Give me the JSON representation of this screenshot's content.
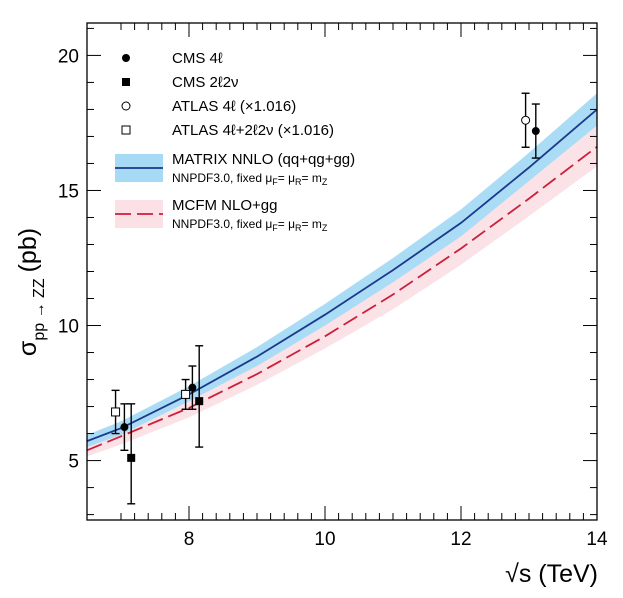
{
  "chart_data": {
    "type": "line",
    "xlabel": "√s (TeV)",
    "ylabel": "σ",
    "ylabel_sub": "pp → ZZ",
    "ylabel_unit": "(pb)",
    "xlim": [
      6.5,
      14
    ],
    "ylim": [
      2.8,
      21.2
    ],
    "xticks": [
      8,
      10,
      12,
      14
    ],
    "yticks": [
      5,
      10,
      15,
      20
    ],
    "grid": false,
    "legend_position": "top-left",
    "bands": [
      {
        "name": "MATRIX NNLO (qq+qg+gg)",
        "note": "NNPDF3.0, fixed μ",
        "color_fill": "#a6daf5",
        "color_line": "#1a3a8c",
        "dash": false,
        "x": [
          6.5,
          7,
          8,
          9,
          10,
          11,
          12,
          13,
          14
        ],
        "central": [
          5.72,
          6.2,
          7.45,
          8.85,
          10.4,
          12.05,
          13.8,
          15.85,
          18.0
        ],
        "low": [
          5.5,
          5.95,
          7.2,
          8.5,
          10.0,
          11.6,
          13.3,
          15.35,
          17.4
        ],
        "high": [
          5.95,
          6.45,
          7.75,
          9.2,
          10.8,
          12.5,
          14.3,
          16.4,
          18.6
        ]
      },
      {
        "name": "MCFM NLO+gg",
        "note": "NNPDF3.0, fixed μ",
        "color_fill": "#fbe0e6",
        "color_line": "#cc1f3a",
        "dash": true,
        "x": [
          6.5,
          7,
          8,
          9,
          10,
          11,
          12,
          13,
          14
        ],
        "central": [
          5.38,
          5.9,
          6.95,
          8.2,
          9.6,
          11.15,
          12.85,
          14.7,
          16.62
        ],
        "low": [
          5.15,
          5.6,
          6.6,
          7.8,
          9.15,
          10.6,
          12.25,
          14.05,
          15.9
        ],
        "high": [
          5.6,
          6.15,
          7.3,
          8.6,
          10.05,
          11.65,
          13.45,
          15.35,
          17.4
        ]
      }
    ],
    "points": [
      {
        "name": "CMS 4ℓ",
        "marker": "filled-circle",
        "data": [
          {
            "x": 7.05,
            "y": 6.24,
            "err_low": 0.86,
            "err_high": 0.86
          },
          {
            "x": 8.05,
            "y": 7.7,
            "err_low": 0.8,
            "err_high": 0.8
          },
          {
            "x": 13.1,
            "y": 17.2,
            "err_low": 1.0,
            "err_high": 1.0
          }
        ]
      },
      {
        "name": "CMS 2ℓ2ν",
        "marker": "filled-square",
        "data": [
          {
            "x": 7.15,
            "y": 5.1,
            "err_low": 1.7,
            "err_high": 2.0
          },
          {
            "x": 8.15,
            "y": 7.2,
            "err_low": 1.7,
            "err_high": 2.05
          }
        ]
      },
      {
        "name": "ATLAS 4ℓ (×1.016)",
        "marker": "open-circle",
        "data": [
          {
            "x": 12.95,
            "y": 17.6,
            "err_low": 1.0,
            "err_high": 1.0
          }
        ]
      },
      {
        "name": "ATLAS 4ℓ+2ℓ2ν (×1.016)",
        "marker": "open-square",
        "data": [
          {
            "x": 6.92,
            "y": 6.8,
            "err_low": 0.8,
            "err_high": 0.8
          },
          {
            "x": 7.95,
            "y": 7.45,
            "err_low": 0.55,
            "err_high": 0.55
          }
        ]
      }
    ]
  }
}
